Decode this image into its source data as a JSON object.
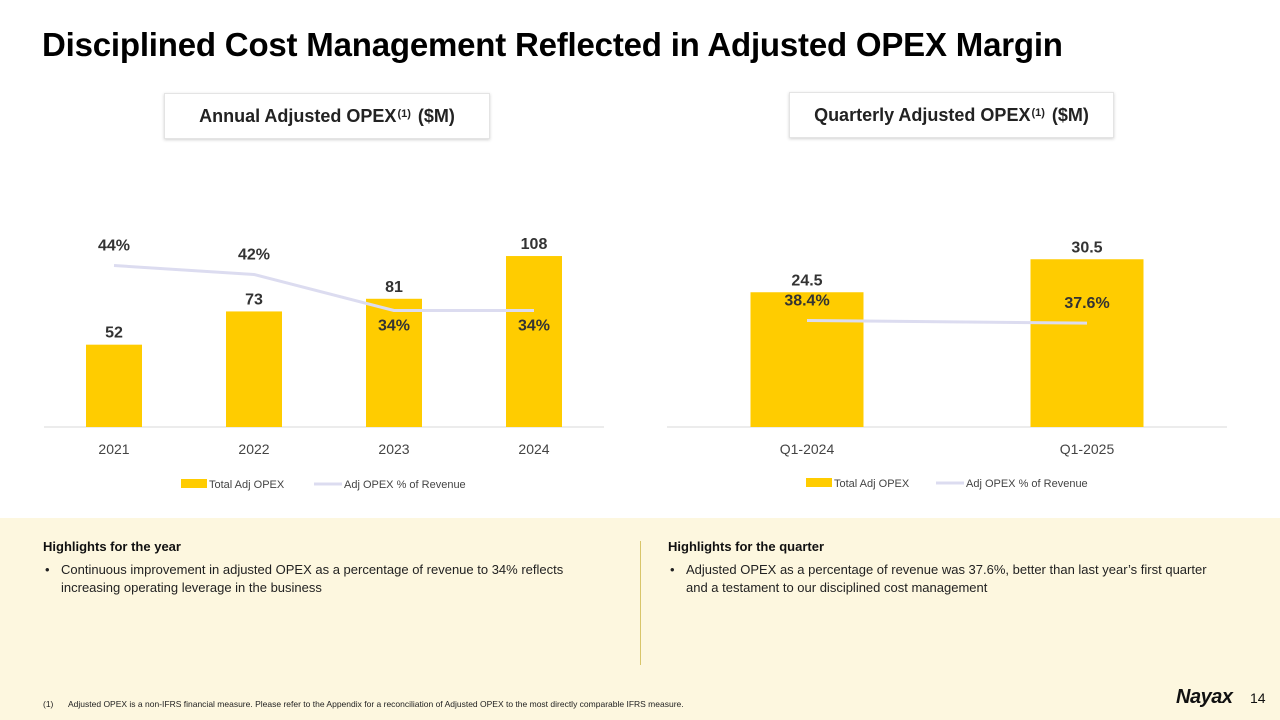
{
  "page": {
    "title": "Disciplined Cost Management Reflected in Adjusted OPEX Margin",
    "page_number": "14",
    "brand": "Nayax"
  },
  "colors": {
    "bar": "#FFCC00",
    "line": "#DCDCF0",
    "highlights_bg": "#FDF7DF",
    "axis": "#D9D9D9"
  },
  "chart_data": [
    {
      "type": "bar",
      "title_main": "Annual Adjusted OPEX",
      "title_sup": "(1)",
      "title_unit": "($M)",
      "categories": [
        "2021",
        "2022",
        "2023",
        "2024"
      ],
      "series": [
        {
          "name": "Total Adj OPEX",
          "type": "bar",
          "values": [
            52,
            73,
            81,
            108
          ],
          "labels": [
            "52",
            "73",
            "81",
            "108"
          ]
        },
        {
          "name": "Adj OPEX  % of Revenue",
          "type": "line",
          "values": [
            44,
            42,
            34,
            34
          ],
          "labels": [
            "44%",
            "42%",
            "34%",
            "34%"
          ]
        }
      ],
      "legend": "bottom"
    },
    {
      "type": "bar",
      "title_main": "Quarterly Adjusted OPEX",
      "title_sup": "(1)",
      "title_unit": "($M)",
      "categories": [
        "Q1-2024",
        "Q1-2025"
      ],
      "series": [
        {
          "name": "Total Adj OPEX",
          "type": "bar",
          "values": [
            24.5,
            30.5
          ],
          "labels": [
            "24.5",
            "30.5"
          ]
        },
        {
          "name": "Adj OPEX  % of Revenue",
          "type": "line",
          "values": [
            38.4,
            37.6
          ],
          "labels": [
            "38.4%",
            "37.6%"
          ]
        }
      ],
      "legend": "bottom"
    }
  ],
  "highlights": {
    "year": {
      "heading": "Highlights for the year",
      "bullet": "Continuous improvement in adjusted OPEX as a percentage of revenue to 34% reflects increasing operating leverage in the business"
    },
    "quarter": {
      "heading": "Highlights for the quarter",
      "bullet": "Adjusted OPEX as a percentage of revenue was 37.6%, better than last year’s first quarter and a testament to our disciplined cost management"
    }
  },
  "footnote": {
    "number": "(1)",
    "text": "Adjusted OPEX is a non-IFRS financial measure. Please refer to the Appendix for a reconciliation of Adjusted OPEX to the most directly comparable IFRS measure."
  }
}
